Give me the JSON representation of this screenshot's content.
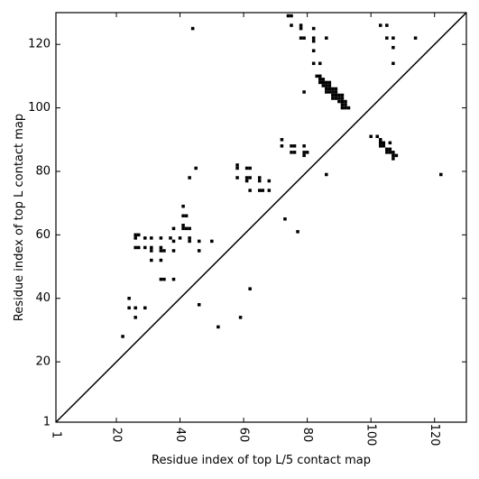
{
  "chart_data": {
    "type": "scatter",
    "title": "",
    "xlabel": "Residue index of top L/5 contact map",
    "ylabel": "Residue index of top L contact map",
    "xlim": [
      1,
      130
    ],
    "ylim": [
      1,
      130
    ],
    "x_ticks": [
      1,
      20,
      40,
      60,
      80,
      100,
      120
    ],
    "y_ticks": [
      1,
      20,
      40,
      60,
      80,
      100,
      120
    ],
    "x_tick_labels": [
      "1",
      "20",
      "40",
      "60",
      "80",
      "100",
      "120"
    ],
    "y_tick_labels": [
      "1",
      "20",
      "40",
      "60",
      "80",
      "100",
      "120"
    ],
    "diagonal": true,
    "grid": false,
    "marker_color": "#000000",
    "upper_triangle_contacts": [
      [
        44,
        125
      ],
      [
        74,
        129
      ],
      [
        75,
        129
      ],
      [
        75,
        126
      ],
      [
        78,
        126
      ],
      [
        78,
        125
      ],
      [
        78,
        122
      ],
      [
        79,
        122
      ],
      [
        82,
        125
      ],
      [
        82,
        122
      ],
      [
        82,
        121
      ],
      [
        82,
        118
      ],
      [
        82,
        114
      ],
      [
        84,
        114
      ],
      [
        86,
        122
      ],
      [
        83,
        110
      ],
      [
        84,
        110
      ],
      [
        84,
        109
      ],
      [
        85,
        109
      ],
      [
        84,
        108
      ],
      [
        85,
        108
      ],
      [
        86,
        108
      ],
      [
        87,
        108
      ],
      [
        85,
        107
      ],
      [
        86,
        107
      ],
      [
        87,
        107
      ],
      [
        86,
        106
      ],
      [
        87,
        106
      ],
      [
        88,
        106
      ],
      [
        89,
        106
      ],
      [
        86,
        105
      ],
      [
        87,
        105
      ],
      [
        88,
        105
      ],
      [
        89,
        105
      ],
      [
        88,
        104
      ],
      [
        89,
        104
      ],
      [
        90,
        104
      ],
      [
        91,
        104
      ],
      [
        88,
        103
      ],
      [
        89,
        103
      ],
      [
        90,
        103
      ],
      [
        91,
        103
      ],
      [
        90,
        102
      ],
      [
        91,
        102
      ],
      [
        92,
        102
      ],
      [
        91,
        101
      ],
      [
        92,
        101
      ],
      [
        91,
        100
      ],
      [
        92,
        100
      ],
      [
        93,
        100
      ],
      [
        79,
        105
      ],
      [
        103,
        126
      ],
      [
        105,
        126
      ],
      [
        105,
        122
      ],
      [
        107,
        122
      ],
      [
        107,
        119
      ],
      [
        107,
        114
      ],
      [
        114,
        122
      ]
    ],
    "lower_triangle_contacts": [
      [
        22,
        28
      ],
      [
        24,
        40
      ],
      [
        24,
        37
      ],
      [
        26,
        37
      ],
      [
        29,
        37
      ],
      [
        26,
        34
      ],
      [
        38,
        46
      ],
      [
        46,
        38
      ],
      [
        52,
        31
      ],
      [
        59,
        34
      ],
      [
        62,
        43
      ],
      [
        73,
        65
      ],
      [
        77,
        61
      ],
      [
        86,
        79
      ],
      [
        26,
        60
      ],
      [
        27,
        60
      ],
      [
        26,
        59
      ],
      [
        29,
        59
      ],
      [
        31,
        59
      ],
      [
        34,
        59
      ],
      [
        37,
        59
      ],
      [
        26,
        56
      ],
      [
        27,
        56
      ],
      [
        29,
        56
      ],
      [
        31,
        56
      ],
      [
        34,
        56
      ],
      [
        31,
        55
      ],
      [
        34,
        55
      ],
      [
        35,
        55
      ],
      [
        38,
        55
      ],
      [
        31,
        52
      ],
      [
        34,
        52
      ],
      [
        34,
        46
      ],
      [
        35,
        46
      ],
      [
        38,
        62
      ],
      [
        38,
        58
      ],
      [
        40,
        59
      ],
      [
        43,
        59
      ],
      [
        43,
        58
      ],
      [
        46,
        58
      ],
      [
        50,
        58
      ],
      [
        46,
        55
      ],
      [
        41,
        69
      ],
      [
        41,
        66
      ],
      [
        42,
        66
      ],
      [
        41,
        63
      ],
      [
        41,
        62
      ],
      [
        42,
        62
      ],
      [
        43,
        62
      ],
      [
        43,
        78
      ],
      [
        45,
        81
      ],
      [
        58,
        82
      ],
      [
        58,
        81
      ],
      [
        61,
        81
      ],
      [
        62,
        81
      ],
      [
        58,
        78
      ],
      [
        61,
        78
      ],
      [
        62,
        78
      ],
      [
        61,
        77
      ],
      [
        65,
        78
      ],
      [
        65,
        77
      ],
      [
        68,
        77
      ],
      [
        62,
        74
      ],
      [
        65,
        74
      ],
      [
        66,
        74
      ],
      [
        68,
        74
      ],
      [
        72,
        90
      ],
      [
        72,
        88
      ],
      [
        75,
        88
      ],
      [
        76,
        88
      ],
      [
        79,
        88
      ],
      [
        75,
        86
      ],
      [
        76,
        86
      ],
      [
        79,
        86
      ],
      [
        80,
        86
      ],
      [
        79,
        85
      ],
      [
        100,
        91
      ],
      [
        102,
        91
      ],
      [
        103,
        90
      ],
      [
        103,
        89
      ],
      [
        104,
        89
      ],
      [
        106,
        89
      ],
      [
        103,
        88
      ],
      [
        104,
        88
      ],
      [
        105,
        87
      ],
      [
        106,
        87
      ],
      [
        105,
        86
      ],
      [
        106,
        86
      ],
      [
        107,
        86
      ],
      [
        107,
        85
      ],
      [
        108,
        85
      ],
      [
        107,
        84
      ],
      [
        122,
        79
      ]
    ]
  }
}
